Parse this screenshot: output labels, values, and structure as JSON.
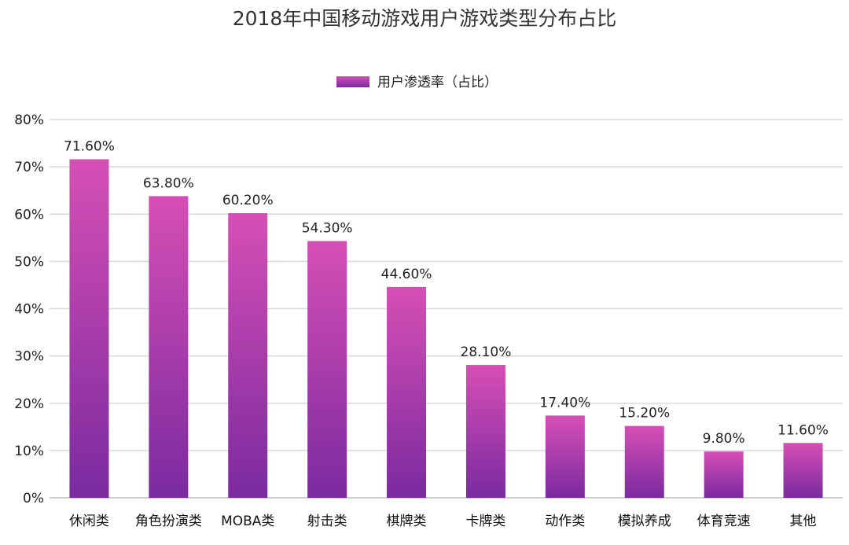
{
  "chart_data": {
    "type": "bar",
    "title": "2018年中国移动游戏用户游戏类型分布占比",
    "legend": [
      "用户渗透率（占比）"
    ],
    "categories": [
      "休闲类",
      "角色扮演类",
      "MOBA类",
      "射击类",
      "棋牌类",
      "卡牌类",
      "动作类",
      "模拟养成",
      "体育竞速",
      "其他"
    ],
    "series": [
      {
        "name": "用户渗透率（占比）",
        "values": [
          71.6,
          63.8,
          60.2,
          54.3,
          44.6,
          28.1,
          17.4,
          15.2,
          9.8,
          11.6
        ],
        "labels": [
          "71.60%",
          "63.80%",
          "60.20%",
          "54.30%",
          "44.60%",
          "28.10%",
          "17.40%",
          "15.20%",
          "9.80%",
          "11.60%"
        ]
      }
    ],
    "y_ticks": [
      "0%",
      "10%",
      "20%",
      "30%",
      "40%",
      "50%",
      "60%",
      "70%",
      "80%"
    ],
    "ylim": [
      0,
      80
    ],
    "grid": true,
    "legend_position": "top-center",
    "colors": {
      "bar_top": "#d64fb5",
      "bar_bottom": "#7a2aa0"
    }
  }
}
